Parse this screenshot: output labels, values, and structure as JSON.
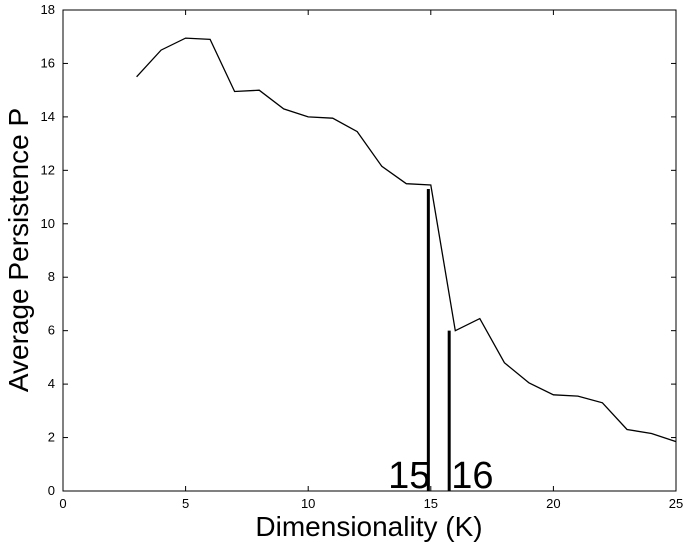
{
  "chart_data": {
    "type": "line",
    "xlabel": "Dimensionality (K)",
    "ylabel": "Average Persistence P",
    "xlim": [
      0,
      25
    ],
    "ylim": [
      0,
      18
    ],
    "xticks": [
      "0",
      "5",
      "10",
      "15",
      "20",
      "25"
    ],
    "yticks": [
      "0",
      "2",
      "4",
      "6",
      "8",
      "10",
      "12",
      "14",
      "16",
      "18"
    ],
    "grid": false,
    "series": [
      {
        "x": [
          3,
          4,
          5,
          6,
          7,
          8,
          9,
          10,
          11,
          12,
          13,
          14,
          15,
          16,
          17,
          18,
          19,
          20,
          21,
          22,
          23,
          24,
          25
        ],
        "y": [
          15.5,
          16.5,
          16.95,
          16.9,
          14.95,
          15.0,
          14.3,
          14.0,
          13.95,
          13.45,
          12.15,
          11.5,
          11.45,
          6.0,
          6.45,
          4.8,
          4.05,
          3.6,
          3.55,
          3.3,
          2.3,
          2.15,
          1.85
        ],
        "color": "#000000"
      }
    ],
    "markers": [
      {
        "x": 14.9,
        "y_top": 11.3,
        "label": "15"
      },
      {
        "x": 15.75,
        "y_top": 6.0,
        "label": "16"
      }
    ]
  }
}
